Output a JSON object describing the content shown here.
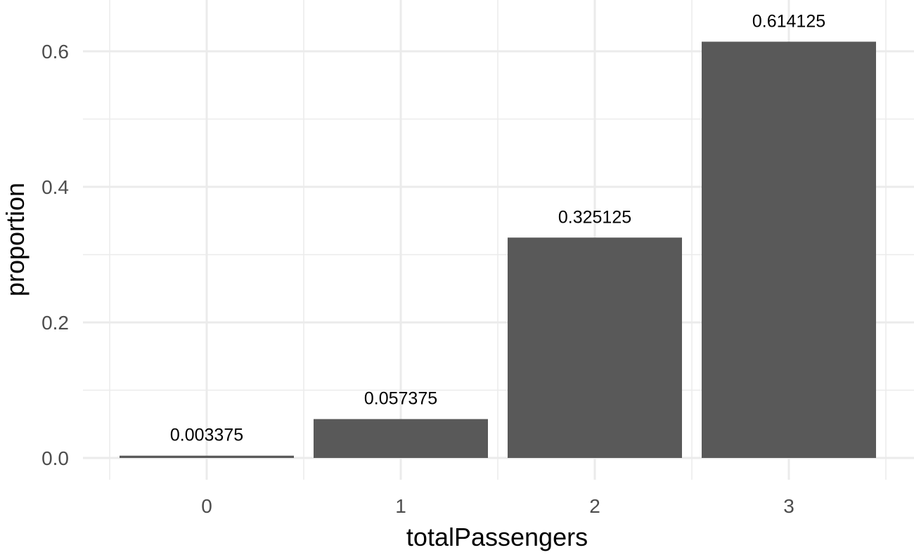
{
  "chart_data": {
    "type": "bar",
    "categories": [
      "0",
      "1",
      "2",
      "3"
    ],
    "values": [
      0.003375,
      0.057375,
      0.325125,
      0.614125
    ],
    "data_labels": [
      "0.003375",
      "0.057375",
      "0.325125",
      "0.614125"
    ],
    "title": "",
    "xlabel": "totalPassengers",
    "ylabel": "proportion",
    "ylim": [
      0,
      0.645
    ],
    "y_ticks": [
      0,
      0.2,
      0.4,
      0.6
    ],
    "y_tick_labels": [
      "0.0",
      "0.2",
      "0.4",
      "0.6"
    ],
    "grid": true,
    "bar_color": "#595959",
    "grid_color": "#ebebeb"
  }
}
